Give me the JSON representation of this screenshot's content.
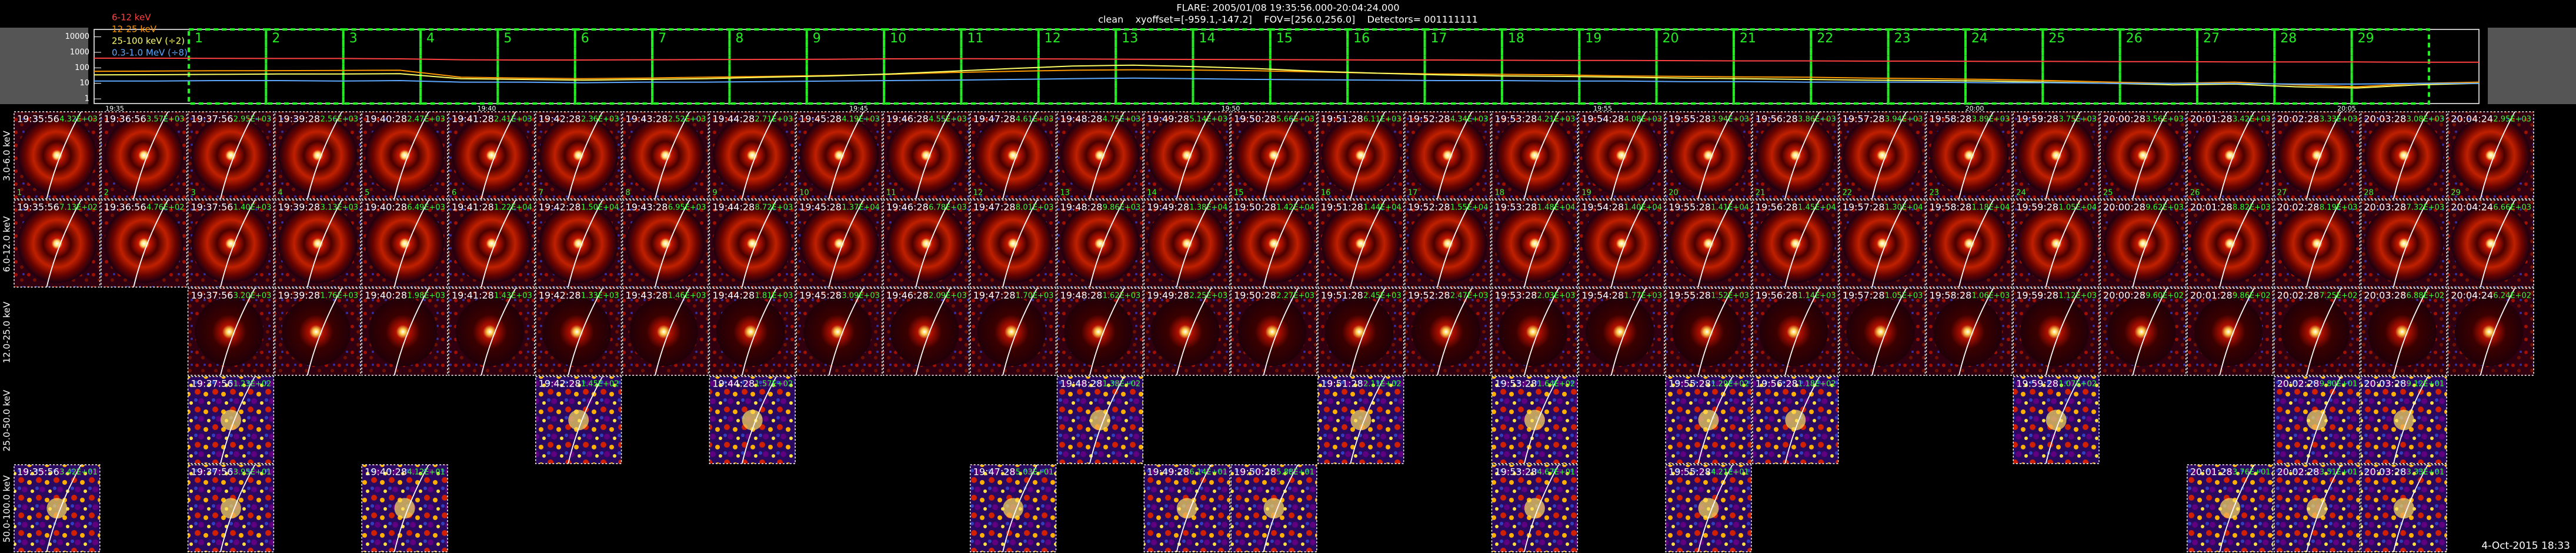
{
  "header": {
    "title": "FLARE: 2005/01/08 19:35:56.000-20:04:24.000",
    "subtitle": "clean    xyoffset=[-959.1,-147.2]    FOV=[256.0,256.0]    Detectors= 001111111"
  },
  "lightcurve": {
    "type": "line",
    "yscale": "log",
    "ylim": [
      0.5,
      30000
    ],
    "yticks": [
      1,
      10,
      100,
      1000,
      10000
    ],
    "xlabels": [
      "19:35",
      "19:40",
      "19:45",
      "19:50",
      "19:55",
      "20:00",
      "20:05"
    ],
    "intervals": [
      1,
      2,
      3,
      4,
      5,
      6,
      7,
      8,
      9,
      10,
      11,
      12,
      13,
      14,
      15,
      16,
      17,
      18,
      19,
      20,
      21,
      22,
      23,
      24,
      25,
      26,
      27,
      28,
      29
    ],
    "series": [
      {
        "name": "6-12 keV",
        "color": "#ff4040",
        "values": [
          420,
          420,
          410,
          400,
          400,
          380,
          330,
          320,
          320,
          330,
          340,
          350,
          360,
          380,
          390,
          380,
          370,
          360,
          350,
          340,
          330,
          320,
          320,
          310,
          300,
          300,
          290,
          280,
          280,
          270,
          270,
          260,
          260,
          250,
          250,
          240,
          240,
          240,
          230,
          230
        ]
      },
      {
        "name": "12-25 keV",
        "color": "#ff9900",
        "values": [
          60,
          62,
          65,
          66,
          68,
          70,
          25,
          22,
          20,
          22,
          25,
          28,
          32,
          38,
          50,
          60,
          70,
          75,
          72,
          65,
          55,
          45,
          40,
          38,
          35,
          30,
          28,
          26,
          25,
          22,
          20,
          18,
          15,
          12,
          10,
          12,
          8,
          6,
          10,
          12
        ]
      },
      {
        "name": "25-100 keV (÷2)",
        "color": "#ffff66",
        "values": [
          35,
          36,
          38,
          40,
          40,
          42,
          20,
          18,
          16,
          18,
          20,
          25,
          30,
          40,
          60,
          90,
          130,
          150,
          120,
          90,
          60,
          45,
          35,
          30,
          28,
          25,
          22,
          20,
          18,
          16,
          15,
          14,
          12,
          10,
          8,
          9,
          6,
          5,
          8,
          10
        ]
      },
      {
        "name": "0.3-1.0 MeV (÷8)",
        "color": "#5fa8ff",
        "values": [
          14,
          14,
          15,
          15,
          14,
          15,
          12,
          12,
          11,
          12,
          12,
          13,
          14,
          15,
          16,
          18,
          20,
          22,
          20,
          18,
          17,
          16,
          15,
          15,
          14,
          14,
          13,
          13,
          12,
          12,
          12,
          11,
          11,
          10,
          10,
          10,
          9,
          9,
          10,
          10
        ]
      }
    ]
  },
  "columns": [
    "19:35:56",
    "19:36:56",
    "19:37:56",
    "19:39:28",
    "19:40:28",
    "19:41:28",
    "19:42:28",
    "19:43:28",
    "19:44:28",
    "19:45:28",
    "19:46:28",
    "19:47:28",
    "19:48:28",
    "19:49:28",
    "19:50:28",
    "19:51:28",
    "19:52:28",
    "19:53:28",
    "19:54:28",
    "19:55:28",
    "19:56:28",
    "19:57:28",
    "19:58:28",
    "19:59:28",
    "20:00:28",
    "20:01:28",
    "20:02:28",
    "20:03:28",
    "20:04:24"
  ],
  "rows": [
    {
      "label": "3.0-6.0 keV",
      "tiles": [
        "4.32E+03",
        "3.57E+03",
        "2.95E+03",
        "2.56E+03",
        "2.47E+03",
        "2.41E+03",
        "2.36E+03",
        "2.52E+03",
        "2.71E+03",
        "4.19E+03",
        "4.55E+03",
        "4.61E+03",
        "4.75E+03",
        "5.14E+03",
        "5.66E+03",
        "6.11E+03",
        "4.34E+03",
        "4.21E+03",
        "4.08E+03",
        "3.94E+03",
        "3.86E+03",
        "3.94E+03",
        "3.89E+03",
        "3.75E+03",
        "3.56E+03",
        "3.42E+03",
        "3.33E+03",
        "3.08E+03",
        "2.95E+03"
      ]
    },
    {
      "label": "6.0-12.0 keV",
      "tiles": [
        "7.13E+02",
        "4.76E+02",
        "1.40E+03",
        "3.13E+03",
        "6.49E+03",
        "1.22E+04",
        "1.50E+04",
        "6.95E+03",
        "8.72E+03",
        "1.37E+04",
        "6.78E+03",
        "8.01E+03",
        "9.86E+03",
        "1.38E+04",
        "1.42E+04",
        "1.44E+04",
        "1.55E+04",
        "1.48E+04",
        "1.40E+04",
        "1.41E+04",
        "1.45E+04",
        "1.30E+04",
        "1.18E+04",
        "1.05E+04",
        "9.62E+03",
        "8.82E+03",
        "8.19E+03",
        "7.32E+03",
        "6.66E+03"
      ]
    },
    {
      "label": "12.0-25.0 keV",
      "tiles": [
        null,
        null,
        "3.20E+03",
        "1.76E+03",
        "1.98E+03",
        "1.43E+03",
        "1.33E+03",
        "1.46E+03",
        "1.81E+03",
        "3.09E+03",
        "2.09E+03",
        "1.70E+03",
        "1.62E+03",
        "2.25E+03",
        "2.27E+03",
        "2.45E+03",
        "2.47E+03",
        "2.03E+03",
        "1.77E+03",
        "1.52E+03",
        "1.14E+03",
        "1.05E+03",
        "1.06E+03",
        "1.12E+03",
        "9.60E+02",
        "9.86E+02",
        "7.25E+02",
        "6.88E+02",
        "6.24E+02"
      ]
    },
    {
      "label": "25.0-50.0 keV",
      "tiles": [
        null,
        null,
        "1.23E+02",
        null,
        null,
        null,
        "1.45E+02",
        null,
        "1.57E+02",
        null,
        null,
        null,
        "1.38E+02",
        null,
        null,
        "2.11E+02",
        null,
        "1.64E+02",
        null,
        "1.29E+02",
        "1.18E+02",
        null,
        null,
        "1.07E+02",
        null,
        null,
        "9.80E+01",
        "9.12E+01",
        null
      ]
    },
    {
      "label": "50.0-100.0 keV",
      "tiles": [
        "3.42E+01",
        null,
        "3.95E+01",
        null,
        "4.12E+01",
        null,
        null,
        null,
        null,
        null,
        null,
        "5.03E+01",
        null,
        "6.14E+01",
        "5.88E+01",
        null,
        null,
        "4.67E+01",
        null,
        "4.21E+01",
        null,
        null,
        null,
        null,
        null,
        "3.76E+01",
        "3.51E+01",
        "3.33E+01",
        null
      ]
    }
  ],
  "footer": "4-Oct-2015 18:33"
}
